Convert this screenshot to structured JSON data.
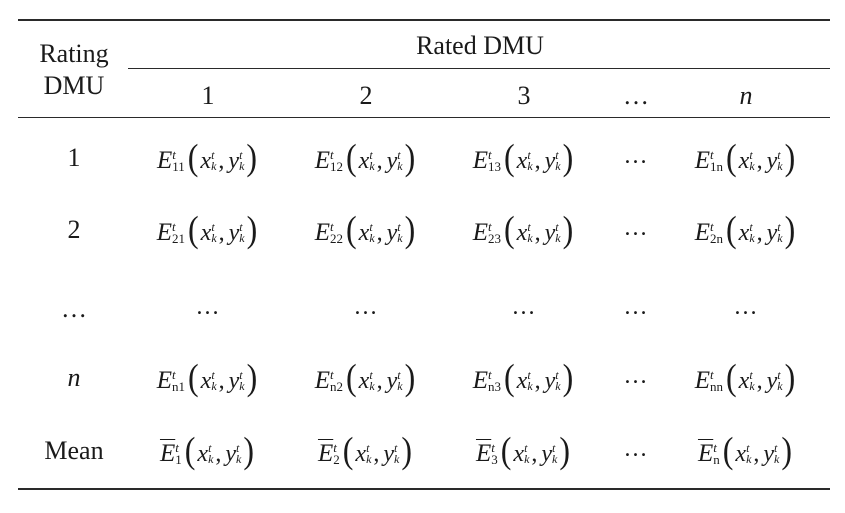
{
  "header": {
    "rating_line1": "Rating",
    "rating_line2": "DMU",
    "rated": "Rated DMU",
    "columns": [
      "1",
      "2",
      "3",
      "…",
      "n"
    ]
  },
  "rows": [
    {
      "label": "1",
      "cells": [
        {
          "sup": "t",
          "sub": "11",
          "x": "x",
          "y": "y",
          "k": "k",
          "t": "t"
        },
        {
          "sup": "t",
          "sub": "12",
          "x": "x",
          "y": "y",
          "k": "k",
          "t": "t"
        },
        {
          "sup": "t",
          "sub": "13",
          "x": "x",
          "y": "y",
          "k": "k",
          "t": "t"
        },
        {
          "text": "…"
        },
        {
          "sup": "t",
          "sub": "1n",
          "x": "x",
          "y": "y",
          "k": "k",
          "t": "t"
        }
      ]
    },
    {
      "label": "2",
      "cells": [
        {
          "sup": "t",
          "sub": "21",
          "x": "x",
          "y": "y",
          "k": "k",
          "t": "t"
        },
        {
          "sup": "t",
          "sub": "22",
          "x": "x",
          "y": "y",
          "k": "k",
          "t": "t"
        },
        {
          "sup": "t",
          "sub": "23",
          "x": "x",
          "y": "y",
          "k": "k",
          "t": "t"
        },
        {
          "text": "…"
        },
        {
          "sup": "t",
          "sub": "2n",
          "x": "x",
          "y": "y",
          "k": "k",
          "t": "t"
        }
      ]
    },
    {
      "label": "…",
      "cells": [
        {
          "text": "…"
        },
        {
          "text": "…"
        },
        {
          "text": "…"
        },
        {
          "text": "…"
        },
        {
          "text": "…"
        }
      ]
    },
    {
      "label": "n",
      "cells": [
        {
          "sup": "t",
          "sub": "n1",
          "x": "x",
          "y": "y",
          "k": "k",
          "t": "t"
        },
        {
          "sup": "t",
          "sub": "n2",
          "x": "x",
          "y": "y",
          "k": "k",
          "t": "t"
        },
        {
          "sup": "t",
          "sub": "n3",
          "x": "x",
          "y": "y",
          "k": "k",
          "t": "t"
        },
        {
          "text": "…"
        },
        {
          "sup": "t",
          "sub": "nn",
          "x": "x",
          "y": "y",
          "k": "k",
          "t": "t"
        }
      ]
    },
    {
      "label": "Mean",
      "cells": [
        {
          "bar": true,
          "sup": "t",
          "sub": "1",
          "x": "x",
          "y": "y",
          "k": "k",
          "t": "t"
        },
        {
          "bar": true,
          "sup": "t",
          "sub": "2",
          "x": "x",
          "y": "y",
          "k": "k",
          "t": "t"
        },
        {
          "bar": true,
          "sup": "t",
          "sub": "3",
          "x": "x",
          "y": "y",
          "k": "k",
          "t": "t"
        },
        {
          "text": "…"
        },
        {
          "bar": true,
          "sup": "t",
          "sub": "n",
          "x": "x",
          "y": "y",
          "k": "k",
          "t": "t"
        }
      ]
    }
  ],
  "symbol": "E"
}
